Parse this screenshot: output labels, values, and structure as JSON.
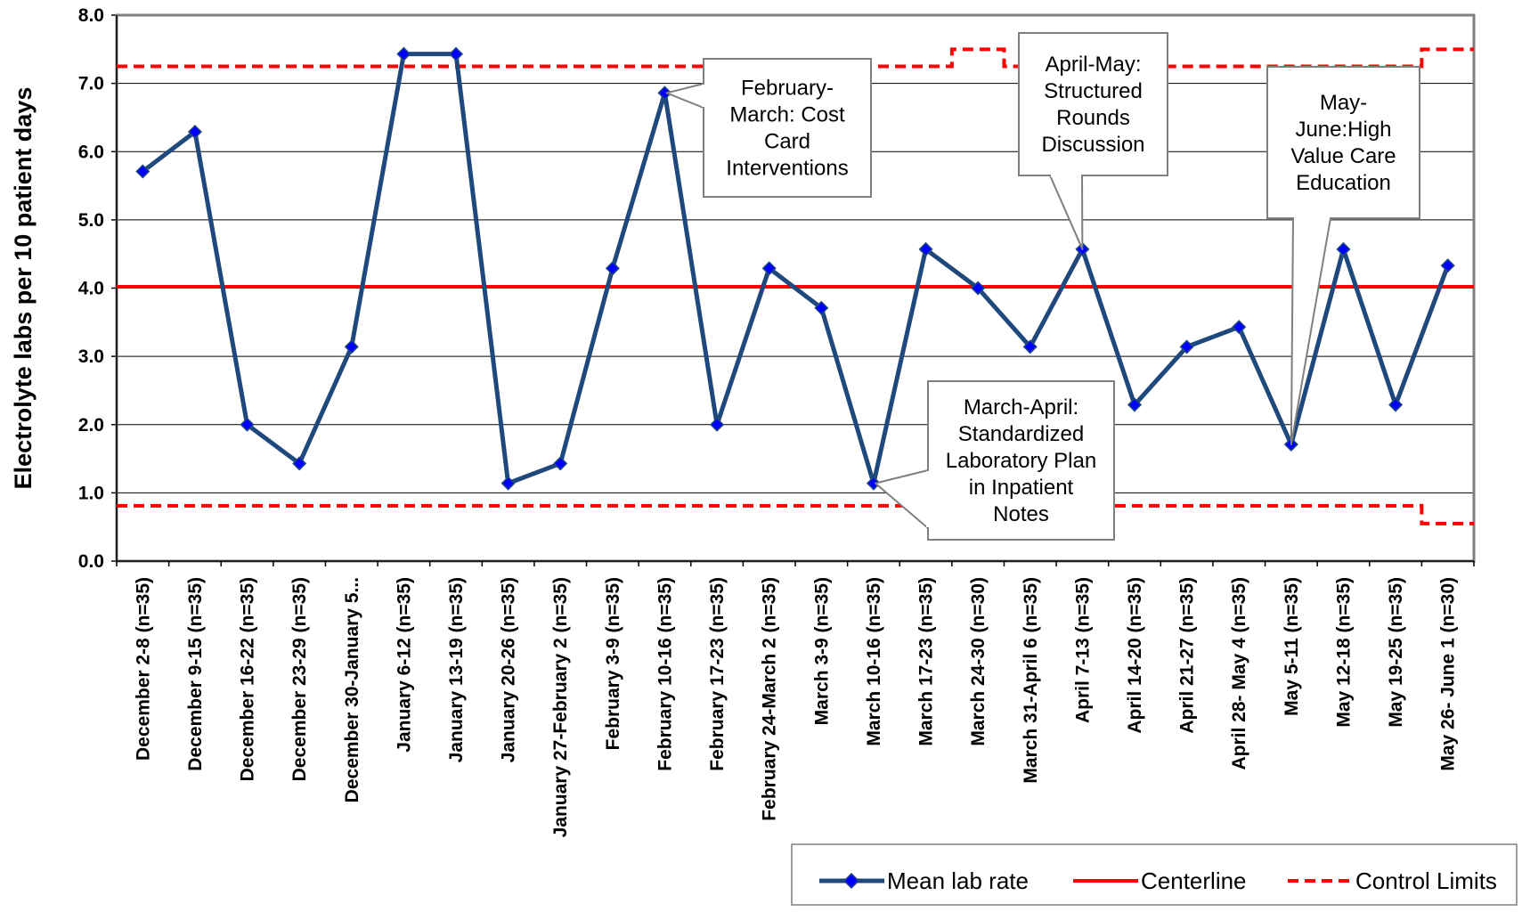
{
  "chart_data": {
    "type": "line",
    "ylabel": "Electrolyte labs per 10 patient days",
    "xlabel": "",
    "ylim": [
      0,
      8
    ],
    "yticks": [
      "0.0",
      "1.0",
      "2.0",
      "3.0",
      "4.0",
      "5.0",
      "6.0",
      "7.0",
      "8.0"
    ],
    "grid": "horizontal",
    "legend_placement": "bottom-right",
    "categories": [
      "December 2-8 (n=35)",
      "December 9-15 (n=35)",
      "December 16-22 (n=35)",
      "December 23-29 (n=35)",
      "December 30-January 5...",
      "January 6-12 (n=35)",
      "January 13-19 (n=35)",
      "January 20-26 (n=35)",
      "January 27-February 2 (n=35)",
      "February 3-9 (n=35)",
      "February 10-16 (n=35)",
      "February 17-23 (n=35)",
      "February 24-March 2 (n=35)",
      "March 3-9 (n=35)",
      "March 10-16 (n=35)",
      "March 17-23 (n=35)",
      "March 24-30 (n=30)",
      "March 31-April 6 (n=35)",
      "April 7-13 (n=35)",
      "April 14-20 (n=35)",
      "April 21-27 (n=35)",
      "April 28- May 4 (n=35)",
      "May 5-11 (n=35)",
      "May 12-18 (n=35)",
      "May 19-25 (n=35)",
      "May 26- June 1 (n=30)"
    ],
    "series": [
      {
        "name": "Mean lab rate",
        "color": "#1F497D",
        "marker": "diamond",
        "values": [
          5.71,
          6.29,
          2.0,
          1.43,
          3.14,
          7.43,
          7.43,
          1.14,
          1.43,
          4.29,
          6.86,
          2.0,
          4.29,
          3.71,
          1.14,
          4.57,
          4.0,
          3.14,
          4.57,
          2.29,
          3.14,
          3.43,
          1.71,
          4.57,
          2.29,
          4.33
        ]
      },
      {
        "name": "Centerline",
        "color": "#FF0000",
        "style": "solid",
        "values": [
          4.02,
          4.02,
          4.02,
          4.02,
          4.02,
          4.02,
          4.02,
          4.02,
          4.02,
          4.02,
          4.02,
          4.02,
          4.02,
          4.02,
          4.02,
          4.02,
          4.02,
          4.02,
          4.02,
          4.02,
          4.02,
          4.02,
          4.02,
          4.02,
          4.02,
          4.02
        ]
      },
      {
        "name": "Control Limits",
        "color": "#FF0000",
        "style": "dashed",
        "upper": [
          7.25,
          7.25,
          7.25,
          7.25,
          7.25,
          7.25,
          7.25,
          7.25,
          7.25,
          7.25,
          7.25,
          7.25,
          7.25,
          7.25,
          7.25,
          7.25,
          7.5,
          7.25,
          7.25,
          7.25,
          7.25,
          7.25,
          7.25,
          7.25,
          7.25,
          7.5
        ],
        "lower": [
          0.81,
          0.81,
          0.81,
          0.81,
          0.81,
          0.81,
          0.81,
          0.81,
          0.81,
          0.81,
          0.81,
          0.81,
          0.81,
          0.81,
          0.81,
          0.81,
          0.81,
          0.81,
          0.81,
          0.81,
          0.81,
          0.81,
          0.81,
          0.81,
          0.81,
          0.55
        ]
      }
    ],
    "annotations": [
      {
        "lines": [
          "February-",
          "March: Cost",
          "Card",
          "Interventions"
        ],
        "target_index": 10
      },
      {
        "lines": [
          "April-May:",
          "Structured",
          "Rounds",
          "Discussion"
        ],
        "target_index": 18
      },
      {
        "lines": [
          "May-",
          "June:High",
          "Value Care",
          "Education"
        ],
        "target_index": 22
      },
      {
        "lines": [
          "March-April:",
          "Standardized",
          "Laboratory Plan",
          "in Inpatient",
          "Notes"
        ],
        "target_index": 14
      }
    ]
  }
}
